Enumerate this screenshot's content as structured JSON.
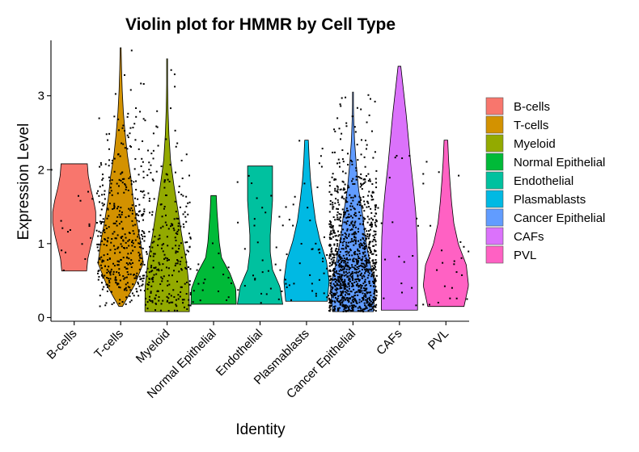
{
  "chart_data": {
    "type": "violin",
    "title": "Violin plot for HMMR by Cell Type",
    "xlabel": "Identity",
    "ylabel": "Expression Level",
    "ylim": [
      -0.05,
      3.75
    ],
    "yticks": [
      0,
      1,
      2,
      3
    ],
    "grid": false,
    "legend_position": "right",
    "categories": [
      "B-cells",
      "T-cells",
      "Myeloid",
      "Normal Epithelial",
      "Endothelial",
      "Plasmablasts",
      "Cancer Epithelial",
      "CAFs",
      "PVL"
    ],
    "colors": [
      "#F8766D",
      "#D39200",
      "#93AA00",
      "#00BA38",
      "#00C19F",
      "#00B9E3",
      "#619CFF",
      "#DB72FB",
      "#FF61C3"
    ],
    "series": [
      {
        "name": "B-cells",
        "min": 0.63,
        "max": 2.08,
        "n_points": 18,
        "density": [
          0.55,
          0.6,
          0.72,
          0.85,
          0.95,
          0.95,
          0.85,
          0.72,
          0.62,
          0.58
        ]
      },
      {
        "name": "T-cells",
        "min": 0.15,
        "max": 3.65,
        "n_points": 420,
        "density": [
          0.08,
          0.62,
          1.0,
          0.88,
          0.7,
          0.55,
          0.45,
          0.3,
          0.2,
          0.12,
          0.07,
          0.04,
          0.02
        ]
      },
      {
        "name": "Myeloid",
        "min": 0.08,
        "max": 3.5,
        "n_points": 280,
        "density": [
          0.98,
          0.97,
          0.85,
          0.65,
          0.48,
          0.3,
          0.15,
          0.08,
          0.04,
          0.02,
          0.01
        ]
      },
      {
        "name": "Normal Epithelial",
        "min": 0.18,
        "max": 1.65,
        "n_points": 20,
        "density": [
          1.0,
          0.98,
          0.72,
          0.35,
          0.25,
          0.2,
          0.15,
          0.12
        ]
      },
      {
        "name": "Endothelial",
        "min": 0.18,
        "max": 2.05,
        "n_points": 30,
        "density": [
          1.0,
          0.88,
          0.55,
          0.45,
          0.45,
          0.5,
          0.55,
          0.55,
          0.55
        ]
      },
      {
        "name": "Plasmablasts",
        "min": 0.22,
        "max": 2.4,
        "n_points": 45,
        "density": [
          0.92,
          1.0,
          0.88,
          0.6,
          0.4,
          0.28,
          0.18,
          0.12,
          0.08
        ]
      },
      {
        "name": "Cancer Epithelial",
        "min": 0.08,
        "max": 3.05,
        "n_points": 1100,
        "density": [
          0.9,
          1.0,
          0.75,
          0.55,
          0.42,
          0.25,
          0.15,
          0.07,
          0.03,
          0.01
        ]
      },
      {
        "name": "CAFs",
        "min": 0.1,
        "max": 3.4,
        "n_points": 20,
        "density": [
          0.8,
          0.8,
          0.8,
          0.78,
          0.72,
          0.62,
          0.5,
          0.4,
          0.3,
          0.18,
          0.06
        ]
      },
      {
        "name": "PVL",
        "min": 0.15,
        "max": 2.4,
        "n_points": 25,
        "density": [
          0.8,
          1.0,
          0.9,
          0.55,
          0.35,
          0.25,
          0.18,
          0.12,
          0.08
        ]
      }
    ]
  }
}
